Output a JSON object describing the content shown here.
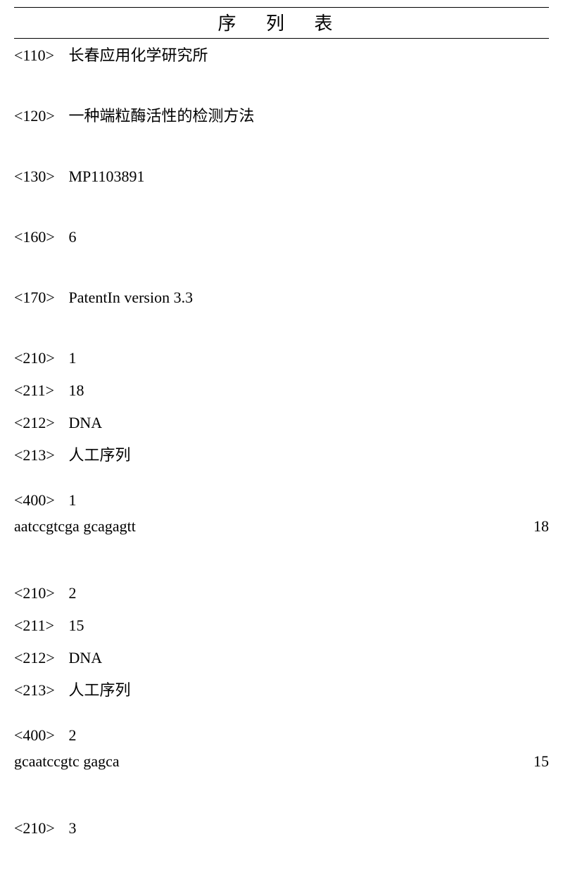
{
  "title": "序   列   表",
  "header": {
    "applicant": {
      "tag": "<110>",
      "value": "长春应用化学研究所"
    },
    "inventionTitle": {
      "tag": "<120>",
      "value": "一种端粒酶活性的检测方法"
    },
    "fileRef": {
      "tag": "<130>",
      "value": "MP1103891"
    },
    "seqCount": {
      "tag": "<160>",
      "value": "6"
    },
    "software": {
      "tag": "<170>",
      "value": "PatentIn version 3.3"
    }
  },
  "seq1": {
    "id": {
      "tag": "<210>",
      "value": "1"
    },
    "length": {
      "tag": "<211>",
      "value": "18"
    },
    "molType": {
      "tag": "<212>",
      "value": "DNA"
    },
    "organism": {
      "tag": "<213>",
      "value": "人工序列"
    },
    "seqTag": {
      "tag": "<400>",
      "value": "1"
    },
    "sequence": "aatccgtcga gcagagtt",
    "seqLen": "18"
  },
  "seq2": {
    "id": {
      "tag": "<210>",
      "value": "2"
    },
    "length": {
      "tag": "<211>",
      "value": "15"
    },
    "molType": {
      "tag": "<212>",
      "value": "DNA"
    },
    "organism": {
      "tag": "<213>",
      "value": "人工序列"
    },
    "seqTag": {
      "tag": "<400>",
      "value": "2"
    },
    "sequence": "gcaatccgtc gagca",
    "seqLen": "15"
  },
  "seq3": {
    "id": {
      "tag": "<210>",
      "value": "3"
    }
  }
}
